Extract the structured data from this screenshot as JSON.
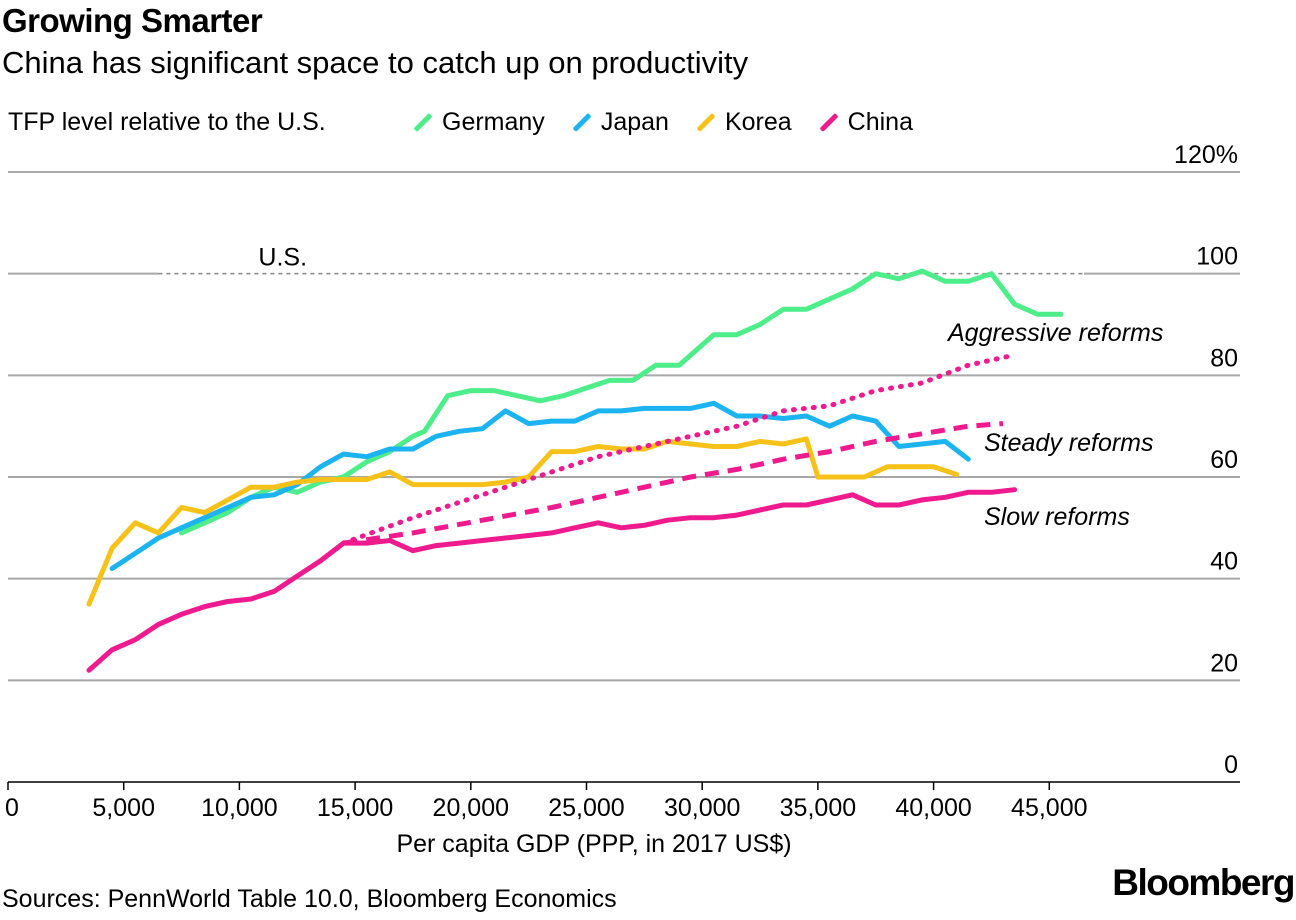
{
  "header": {
    "title": "Growing Smarter",
    "subtitle": "China has significant space to catch up on productivity",
    "y_axis_label": "TFP level relative to the U.S."
  },
  "legend": [
    {
      "name": "Germany",
      "color": "#4ded8a"
    },
    {
      "name": "Japan",
      "color": "#1bb3f0"
    },
    {
      "name": "Korea",
      "color": "#f6c21a"
    },
    {
      "name": "China",
      "color": "#ee1a8e"
    }
  ],
  "footer": {
    "source": "Sources: PennWorld Table 10.0, Bloomberg Economics",
    "brand": "Bloomberg"
  },
  "chart_data": {
    "type": "line",
    "title": "Growing Smarter",
    "subtitle": "China has significant space to catch up on productivity",
    "xlabel": "Per capita GDP (PPP, in 2017 US$)",
    "ylabel": "TFP level relative to the U.S.",
    "xlim": [
      0,
      53500
    ],
    "ylim": [
      0,
      120
    ],
    "x_ticks": [
      0,
      5000,
      10000,
      15000,
      20000,
      25000,
      30000,
      35000,
      40000,
      45000
    ],
    "x_tick_labels": [
      "0",
      "5,000",
      "10,000",
      "15,000",
      "20,000",
      "25,000",
      "30,000",
      "35,000",
      "40,000",
      "45,000"
    ],
    "y_ticks": [
      0,
      20,
      40,
      60,
      80,
      100,
      120
    ],
    "y_tick_labels": [
      "0",
      "20",
      "40",
      "60",
      "80",
      "100",
      "120%"
    ],
    "grid": true,
    "reference_line": {
      "label": "U.S.",
      "y": 100,
      "x_range": [
        6500,
        46500
      ]
    },
    "series": [
      {
        "name": "Germany",
        "color": "#4ded8a",
        "style": "solid",
        "points": [
          [
            7500,
            49
          ],
          [
            8500,
            51
          ],
          [
            9500,
            53
          ],
          [
            10500,
            56
          ],
          [
            11500,
            58
          ],
          [
            12500,
            57
          ],
          [
            13500,
            59
          ],
          [
            14500,
            60
          ],
          [
            15500,
            63
          ],
          [
            16500,
            65
          ],
          [
            17500,
            68
          ],
          [
            18000,
            69
          ],
          [
            19000,
            76
          ],
          [
            20000,
            77
          ],
          [
            21000,
            77
          ],
          [
            22000,
            76
          ],
          [
            23000,
            75
          ],
          [
            24000,
            76
          ],
          [
            25000,
            77.5
          ],
          [
            26000,
            79
          ],
          [
            27000,
            79
          ],
          [
            28000,
            82
          ],
          [
            29000,
            82
          ],
          [
            30500,
            88
          ],
          [
            31500,
            88
          ],
          [
            32500,
            90
          ],
          [
            33500,
            93
          ],
          [
            34500,
            93
          ],
          [
            35500,
            95
          ],
          [
            36500,
            97
          ],
          [
            37500,
            100
          ],
          [
            38500,
            99
          ],
          [
            39500,
            100.5
          ],
          [
            40500,
            98.5
          ],
          [
            41500,
            98.5
          ],
          [
            42500,
            100
          ],
          [
            43500,
            94
          ],
          [
            44500,
            92
          ],
          [
            45500,
            92
          ]
        ]
      },
      {
        "name": "Japan",
        "color": "#1bb3f0",
        "style": "solid",
        "points": [
          [
            4500,
            42
          ],
          [
            5500,
            45
          ],
          [
            6500,
            48
          ],
          [
            7500,
            50
          ],
          [
            8500,
            52
          ],
          [
            9500,
            54
          ],
          [
            10500,
            56
          ],
          [
            11500,
            56.5
          ],
          [
            12500,
            58.5
          ],
          [
            13500,
            62
          ],
          [
            14500,
            64.5
          ],
          [
            15500,
            64
          ],
          [
            16500,
            65.5
          ],
          [
            17500,
            65.5
          ],
          [
            18500,
            68
          ],
          [
            19500,
            69
          ],
          [
            20500,
            69.5
          ],
          [
            21500,
            73
          ],
          [
            22500,
            70.5
          ],
          [
            23500,
            71
          ],
          [
            24500,
            71
          ],
          [
            25500,
            73
          ],
          [
            26500,
            73
          ],
          [
            27500,
            73.5
          ],
          [
            28500,
            73.5
          ],
          [
            29500,
            73.5
          ],
          [
            30500,
            74.5
          ],
          [
            31500,
            72
          ],
          [
            32500,
            72
          ],
          [
            33500,
            71.5
          ],
          [
            34500,
            72
          ],
          [
            35500,
            70
          ],
          [
            36500,
            72
          ],
          [
            37500,
            71
          ],
          [
            38500,
            66
          ],
          [
            39500,
            66.5
          ],
          [
            40500,
            67
          ],
          [
            41500,
            63.5
          ]
        ]
      },
      {
        "name": "Korea",
        "color": "#f6c21a",
        "style": "solid",
        "points": [
          [
            3500,
            35
          ],
          [
            4500,
            46
          ],
          [
            5500,
            51
          ],
          [
            6500,
            49
          ],
          [
            7500,
            54
          ],
          [
            8500,
            53
          ],
          [
            9500,
            55.5
          ],
          [
            10500,
            58
          ],
          [
            11500,
            58
          ],
          [
            12500,
            59
          ],
          [
            13500,
            59.5
          ],
          [
            14500,
            59.5
          ],
          [
            15500,
            59.5
          ],
          [
            16500,
            61
          ],
          [
            17500,
            58.5
          ],
          [
            18500,
            58.5
          ],
          [
            19500,
            58.5
          ],
          [
            20500,
            58.5
          ],
          [
            21500,
            59
          ],
          [
            22500,
            60
          ],
          [
            23500,
            65
          ],
          [
            24500,
            65
          ],
          [
            25500,
            66
          ],
          [
            26500,
            65.5
          ],
          [
            27500,
            65.5
          ],
          [
            28500,
            67
          ],
          [
            29500,
            66.5
          ],
          [
            30500,
            66
          ],
          [
            31500,
            66
          ],
          [
            32500,
            67
          ],
          [
            33500,
            66.5
          ],
          [
            34500,
            67.5
          ],
          [
            35000,
            60
          ],
          [
            36000,
            60
          ],
          [
            37000,
            60
          ],
          [
            38000,
            62
          ],
          [
            39000,
            62
          ],
          [
            40000,
            62
          ],
          [
            41000,
            60.5
          ]
        ]
      },
      {
        "name": "China",
        "color": "#ee1a8e",
        "style": "solid",
        "points": [
          [
            3500,
            22
          ],
          [
            4500,
            26
          ],
          [
            5500,
            28
          ],
          [
            6500,
            31
          ],
          [
            7500,
            33
          ],
          [
            8500,
            34.5
          ],
          [
            9500,
            35.5
          ],
          [
            10500,
            36
          ],
          [
            11500,
            37.5
          ],
          [
            12500,
            40.5
          ],
          [
            13500,
            43.5
          ],
          [
            14500,
            47
          ]
        ]
      },
      {
        "name": "Slow reforms",
        "color": "#ee1a8e",
        "style": "solid",
        "label": "Slow reforms",
        "points": [
          [
            14500,
            47
          ],
          [
            15500,
            47
          ],
          [
            16500,
            47.5
          ],
          [
            17500,
            45.5
          ],
          [
            18500,
            46.5
          ],
          [
            19500,
            47
          ],
          [
            20500,
            47.5
          ],
          [
            21500,
            48
          ],
          [
            22500,
            48.5
          ],
          [
            23500,
            49
          ],
          [
            24500,
            50
          ],
          [
            25500,
            51
          ],
          [
            26500,
            50
          ],
          [
            27500,
            50.5
          ],
          [
            28500,
            51.5
          ],
          [
            29500,
            52
          ],
          [
            30500,
            52
          ],
          [
            31500,
            52.5
          ],
          [
            32500,
            53.5
          ],
          [
            33500,
            54.5
          ],
          [
            34500,
            54.5
          ],
          [
            35500,
            55.5
          ],
          [
            36500,
            56.5
          ],
          [
            37500,
            54.5
          ],
          [
            38500,
            54.5
          ],
          [
            39500,
            55.5
          ],
          [
            40500,
            56
          ],
          [
            41500,
            57
          ],
          [
            42500,
            57
          ],
          [
            43500,
            57.5
          ]
        ]
      },
      {
        "name": "Steady reforms",
        "color": "#ee1a8e",
        "style": "dashed",
        "label": "Steady reforms",
        "points": [
          [
            14500,
            47
          ],
          [
            17500,
            49
          ],
          [
            20500,
            51.5
          ],
          [
            23500,
            54
          ],
          [
            26500,
            57
          ],
          [
            29500,
            60
          ],
          [
            31500,
            61.5
          ],
          [
            33500,
            63.5
          ],
          [
            35500,
            65
          ],
          [
            37500,
            67
          ],
          [
            39500,
            68.5
          ],
          [
            41500,
            70
          ],
          [
            43000,
            70.5
          ]
        ]
      },
      {
        "name": "Aggressive reforms",
        "color": "#ee1a8e",
        "style": "dotted",
        "label": "Aggressive reforms",
        "points": [
          [
            14500,
            47
          ],
          [
            16000,
            49.5
          ],
          [
            17500,
            52
          ],
          [
            19500,
            55
          ],
          [
            21500,
            58
          ],
          [
            23500,
            61
          ],
          [
            25500,
            64
          ],
          [
            27500,
            66
          ],
          [
            29500,
            68
          ],
          [
            31500,
            70
          ],
          [
            33500,
            73
          ],
          [
            35500,
            74
          ],
          [
            37500,
            77
          ],
          [
            39500,
            78.5
          ],
          [
            41500,
            82
          ],
          [
            43500,
            84
          ]
        ]
      }
    ]
  }
}
